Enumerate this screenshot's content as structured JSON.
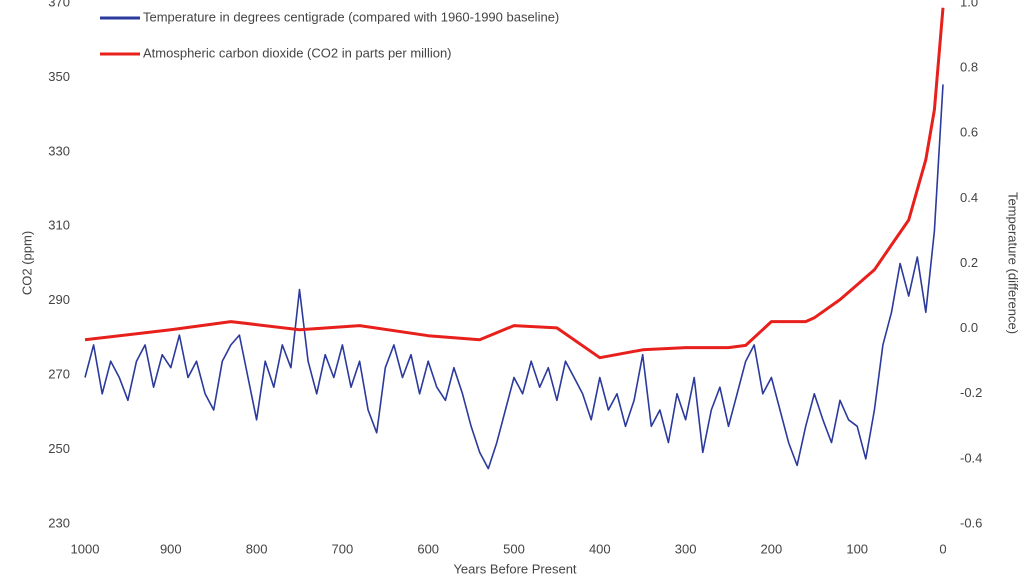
{
  "chart_data": {
    "type": "line",
    "xlabel": "Years Before Present",
    "ylabel": "CO2 (ppm)",
    "y2label": "Temperature (difference)",
    "xlim": [
      1000,
      0
    ],
    "xticks": [
      1000,
      900,
      800,
      700,
      600,
      500,
      400,
      300,
      200,
      100,
      0
    ],
    "ylim": [
      230,
      370
    ],
    "yticks": [
      230,
      250,
      270,
      290,
      310,
      330,
      350,
      370
    ],
    "y2lim": [
      -0.6,
      1.0
    ],
    "y2ticks": [
      -0.6,
      -0.4,
      -0.2,
      {
        "value": 0,
        "label": "0.0"
      },
      0.2,
      0.4,
      0.6,
      0.8,
      {
        "value": 1,
        "label": "1.0"
      }
    ],
    "series": [
      {
        "name": "Temperature in degrees centigrade (compared with 1960-1990 baseline)",
        "color": "#2b3a9c",
        "axis": "y2",
        "x": [
          1000,
          990,
          980,
          970,
          960,
          950,
          940,
          930,
          920,
          910,
          900,
          890,
          880,
          870,
          860,
          850,
          840,
          830,
          820,
          810,
          800,
          790,
          780,
          770,
          760,
          750,
          740,
          730,
          720,
          710,
          700,
          690,
          680,
          670,
          660,
          650,
          640,
          630,
          620,
          610,
          600,
          590,
          580,
          570,
          560,
          550,
          540,
          530,
          520,
          510,
          500,
          490,
          480,
          470,
          460,
          450,
          440,
          430,
          420,
          410,
          400,
          390,
          380,
          370,
          360,
          350,
          340,
          330,
          320,
          310,
          300,
          290,
          280,
          270,
          260,
          250,
          240,
          230,
          220,
          210,
          200,
          190,
          180,
          170,
          160,
          150,
          140,
          130,
          120,
          110,
          100,
          90,
          80,
          70,
          60,
          50,
          40,
          30,
          20,
          10,
          0
        ],
        "values": [
          -0.15,
          -0.05,
          -0.2,
          -0.1,
          -0.15,
          -0.22,
          -0.1,
          -0.05,
          -0.18,
          -0.08,
          -0.12,
          -0.02,
          -0.15,
          -0.1,
          -0.2,
          -0.25,
          -0.1,
          -0.05,
          -0.02,
          -0.15,
          -0.28,
          -0.1,
          -0.18,
          -0.05,
          -0.12,
          0.12,
          -0.1,
          -0.2,
          -0.08,
          -0.15,
          -0.05,
          -0.18,
          -0.1,
          -0.25,
          -0.32,
          -0.12,
          -0.05,
          -0.15,
          -0.08,
          -0.2,
          -0.1,
          -0.18,
          -0.22,
          -0.12,
          -0.2,
          -0.3,
          -0.38,
          -0.43,
          -0.35,
          -0.25,
          -0.15,
          -0.2,
          -0.1,
          -0.18,
          -0.12,
          -0.22,
          -0.1,
          -0.15,
          -0.2,
          -0.28,
          -0.15,
          -0.25,
          -0.2,
          -0.3,
          -0.22,
          -0.08,
          -0.3,
          -0.25,
          -0.35,
          -0.2,
          -0.28,
          -0.15,
          -0.38,
          -0.25,
          -0.18,
          -0.3,
          -0.2,
          -0.1,
          -0.05,
          -0.2,
          -0.15,
          -0.25,
          -0.35,
          -0.42,
          -0.3,
          -0.2,
          -0.28,
          -0.35,
          -0.22,
          -0.28,
          -0.3,
          -0.4,
          -0.25,
          -0.05,
          0.05,
          0.2,
          0.1,
          0.22,
          0.05,
          0.3,
          0.75
        ]
      },
      {
        "name": "Atmospheric carbon dioxide (CO2 in parts per million)",
        "color": "#e8201c",
        "axis": "y",
        "x": [
          1000,
          900,
          830,
          750,
          680,
          600,
          540,
          500,
          450,
          400,
          350,
          300,
          250,
          230,
          200,
          160,
          150,
          120,
          100,
          80,
          60,
          40,
          20,
          10,
          0
        ],
        "values": [
          279.5,
          282.2,
          284.4,
          282.2,
          283.3,
          280.6,
          279.5,
          283.3,
          282.7,
          274.7,
          276.8,
          277.4,
          277.4,
          278,
          284.4,
          284.4,
          285.4,
          290.3,
          294.3,
          298.3,
          305,
          311.7,
          327.9,
          341.3,
          368.7
        ]
      }
    ]
  }
}
